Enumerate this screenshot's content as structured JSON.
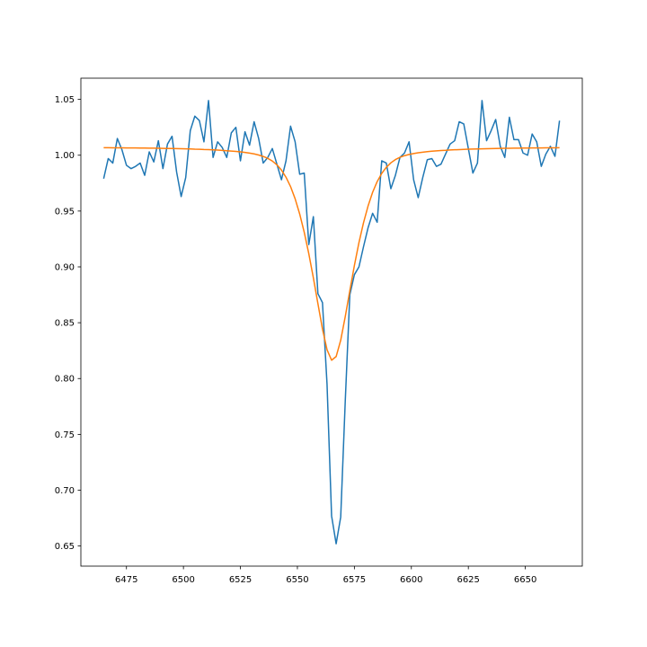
{
  "chart_data": {
    "type": "line",
    "x": [
      6465,
      6467,
      6469,
      6471,
      6473,
      6475,
      6477,
      6479,
      6481,
      6483,
      6485,
      6487,
      6489,
      6491,
      6493,
      6495,
      6497,
      6499,
      6501,
      6503,
      6505,
      6507,
      6509,
      6511,
      6513,
      6515,
      6517,
      6519,
      6521,
      6523,
      6525,
      6527,
      6529,
      6531,
      6533,
      6535,
      6537,
      6539,
      6541,
      6543,
      6545,
      6547,
      6549,
      6551,
      6553,
      6555,
      6557,
      6559,
      6561,
      6563,
      6565,
      6567,
      6569,
      6571,
      6573,
      6575,
      6577,
      6579,
      6581,
      6583,
      6585,
      6587,
      6589,
      6591,
      6593,
      6595,
      6597,
      6599,
      6601,
      6603,
      6605,
      6607,
      6609,
      6611,
      6613,
      6615,
      6617,
      6619,
      6621,
      6623,
      6625,
      6627,
      6629,
      6631,
      6633,
      6635,
      6637,
      6639,
      6641,
      6643,
      6645,
      6647,
      6649,
      6651,
      6653,
      6655,
      6657,
      6659,
      6661,
      6663,
      6665
    ],
    "series": [
      {
        "color": "#1f77b4",
        "values": [
          0.979,
          0.997,
          0.993,
          1.015,
          1.005,
          0.991,
          0.988,
          0.99,
          0.993,
          0.982,
          1.003,
          0.994,
          1.013,
          0.988,
          1.01,
          1.017,
          0.985,
          0.963,
          0.98,
          1.022,
          1.035,
          1.031,
          1.012,
          1.049,
          0.998,
          1.012,
          1.007,
          0.998,
          1.02,
          1.025,
          0.995,
          1.021,
          1.009,
          1.03,
          1.015,
          0.993,
          0.998,
          1.006,
          0.992,
          0.978,
          0.995,
          1.026,
          1.012,
          0.983,
          0.984,
          0.92,
          0.945,
          0.876,
          0.868,
          0.795,
          0.677,
          0.652,
          0.676,
          0.78,
          0.875,
          0.893,
          0.9,
          0.918,
          0.935,
          0.948,
          0.94,
          0.995,
          0.993,
          0.97,
          0.982,
          0.998,
          1.002,
          1.012,
          0.978,
          0.962,
          0.98,
          0.996,
          0.997,
          0.99,
          0.992,
          1.001,
          1.01,
          1.013,
          1.03,
          1.028,
          1.006,
          0.984,
          0.993,
          1.049,
          1.013,
          1.022,
          1.032,
          1.008,
          0.998,
          1.034,
          1.014,
          1.014,
          1.002,
          1.0,
          1.019,
          1.012,
          0.99,
          1.001,
          1.008,
          0.999,
          1.031
        ]
      },
      {
        "color": "#ff7f0e",
        "values": [
          1.0067,
          1.0067,
          1.0066,
          1.0066,
          1.0066,
          1.0065,
          1.0065,
          1.0065,
          1.0064,
          1.0064,
          1.0063,
          1.0063,
          1.0062,
          1.0061,
          1.006,
          1.006,
          1.0059,
          1.0058,
          1.0057,
          1.0056,
          1.0054,
          1.0053,
          1.0051,
          1.005,
          1.0048,
          1.0046,
          1.0043,
          1.004,
          1.0037,
          1.0034,
          1.003,
          1.0025,
          1.0019,
          1.0012,
          1.0002,
          0.9989,
          0.9972,
          0.9948,
          0.9914,
          0.9867,
          0.9803,
          0.9719,
          0.961,
          0.9474,
          0.931,
          0.9118,
          0.8902,
          0.8671,
          0.8444,
          0.8258,
          0.8164,
          0.8197,
          0.8343,
          0.8555,
          0.8787,
          0.9012,
          0.9217,
          0.9395,
          0.9545,
          0.9668,
          0.9764,
          0.9837,
          0.9892,
          0.9932,
          0.9961,
          0.9981,
          0.9996,
          1.0007,
          1.0015,
          1.0022,
          1.0027,
          1.0032,
          1.0036,
          1.0039,
          1.0042,
          1.0044,
          1.0047,
          1.0049,
          1.005,
          1.0052,
          1.0054,
          1.0055,
          1.0056,
          1.0057,
          1.0058,
          1.0059,
          1.006,
          1.0061,
          1.0062,
          1.0062,
          1.0063,
          1.0063,
          1.0064,
          1.0064,
          1.0065,
          1.0065,
          1.0065,
          1.0066,
          1.0066,
          1.0066,
          1.0067
        ]
      }
    ],
    "xlim": [
      6455,
      6675
    ],
    "xticks": [
      6475,
      6500,
      6525,
      6550,
      6575,
      6600,
      6625,
      6650
    ],
    "ylim": [
      0.632,
      1.069
    ],
    "yticks": [
      0.65,
      {
        "value": 0.7,
        "label": "0.70"
      },
      0.75,
      {
        "value": 0.8,
        "label": "0.80"
      },
      0.85,
      {
        "value": 0.9,
        "label": "0.90"
      },
      0.95,
      {
        "value": 1,
        "label": "1.00"
      },
      1.05
    ],
    "grid": false
  }
}
